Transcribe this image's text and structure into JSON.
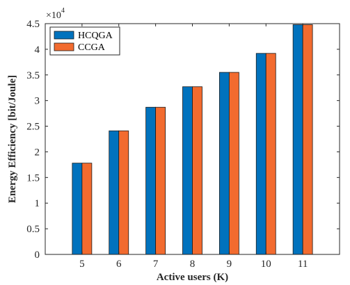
{
  "chart_data": {
    "type": "bar",
    "xlabel": "Active users (K)",
    "ylabel": "Energy Efficiency [bit/Joule]",
    "y_multiplier_base": "×10",
    "y_multiplier_exp": "4",
    "categories": [
      "5",
      "6",
      "7",
      "8",
      "9",
      "10",
      "11"
    ],
    "ylim": [
      0,
      4.5
    ],
    "y_ticks": [
      "0",
      "0.5",
      "1",
      "1.5",
      "2",
      "2.5",
      "3",
      "3.5",
      "4",
      "4.5"
    ],
    "grid": false,
    "legend_position": "top-left",
    "series": [
      {
        "name": "HCQGA",
        "color": "#0072BD",
        "values": [
          1.78,
          2.41,
          2.87,
          3.27,
          3.55,
          3.92,
          4.48
        ]
      },
      {
        "name": "CCGA",
        "color": "#F26B2F",
        "values": [
          1.78,
          2.41,
          2.87,
          3.27,
          3.55,
          3.92,
          4.48
        ]
      }
    ]
  }
}
